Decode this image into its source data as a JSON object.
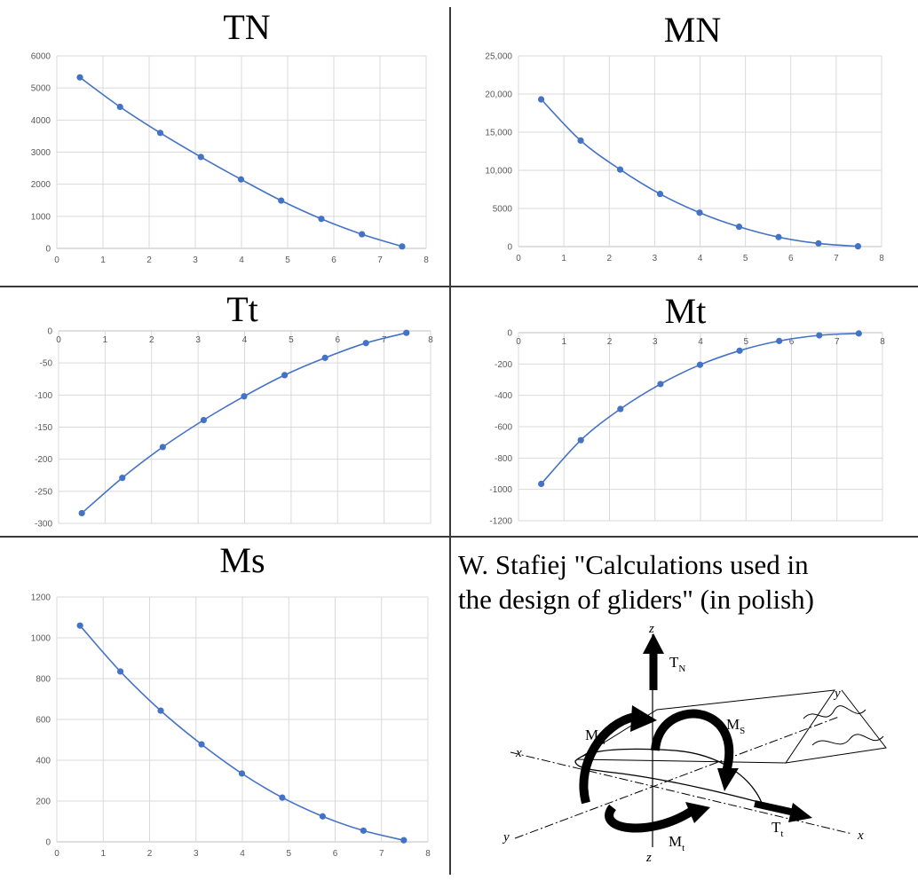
{
  "citation": {
    "line1": "W. Stafiej \"Calculations used in",
    "line2": "the design of gliders\" (in polish)"
  },
  "diagram": {
    "axis_labels": {
      "z_top": "z",
      "z_bottom": "z",
      "x_left": "x",
      "x_right": "x",
      "y_left": "y",
      "y_right": "y"
    },
    "force_labels": {
      "TN": {
        "main": "T",
        "sub": "N"
      },
      "Tt": {
        "main": "T",
        "sub": "t"
      },
      "MN": {
        "main": "M",
        "sub": "N"
      },
      "Ms": {
        "main": "M",
        "sub": "S"
      },
      "Mt": {
        "main": "M",
        "sub": "t"
      }
    }
  },
  "colors": {
    "series": "#4472c4",
    "grid": "#d9d9d9",
    "ticks": "#595959",
    "divider": "#3a3a3a"
  },
  "chart_data": [
    {
      "type": "scatter",
      "title": "TN",
      "x": [
        0.5,
        1.37,
        2.24,
        3.12,
        3.99,
        4.86,
        5.73,
        6.61,
        7.48
      ],
      "y": [
        5330,
        4410,
        3600,
        2850,
        2150,
        1490,
        920,
        440,
        60
      ],
      "xlim": [
        0,
        8
      ],
      "ylim": [
        0,
        6000
      ],
      "xticks": [
        "0",
        "1",
        "2",
        "3",
        "4",
        "5",
        "6",
        "7",
        "8"
      ],
      "yticks": [
        "0",
        "1000",
        "2000",
        "3000",
        "4000",
        "5000",
        "6000"
      ],
      "smooth": true,
      "grid": true
    },
    {
      "type": "scatter",
      "title": "MN",
      "x": [
        0.5,
        1.37,
        2.24,
        3.12,
        3.99,
        4.86,
        5.73,
        6.61,
        7.48
      ],
      "y": [
        19300,
        13900,
        10100,
        6900,
        4450,
        2600,
        1250,
        420,
        40
      ],
      "xlim": [
        0,
        8
      ],
      "ylim": [
        0,
        25000
      ],
      "xticks": [
        "0",
        "1",
        "2",
        "3",
        "4",
        "5",
        "6",
        "7",
        "8"
      ],
      "yticks": [
        "0",
        "5000",
        "10,000",
        "15,000",
        "20,000",
        "25,000"
      ],
      "smooth": true,
      "grid": true
    },
    {
      "type": "scatter",
      "title": "Tt",
      "x": [
        0.5,
        1.37,
        2.24,
        3.12,
        3.99,
        4.86,
        5.73,
        6.61,
        7.48
      ],
      "y": [
        -284,
        -229,
        -181,
        -139,
        -102,
        -69,
        -42,
        -19,
        -3
      ],
      "xlim": [
        0,
        8
      ],
      "ylim": [
        -300,
        0
      ],
      "xticks": [
        "0",
        "1",
        "2",
        "3",
        "4",
        "5",
        "6",
        "7",
        "8"
      ],
      "yticks": [
        "0",
        "-50",
        "-100",
        "-150",
        "-200",
        "-250",
        "-300"
      ],
      "smooth": true,
      "grid": true
    },
    {
      "type": "scatter",
      "title": "Mt",
      "x": [
        0.5,
        1.37,
        2.24,
        3.12,
        3.99,
        4.86,
        5.73,
        6.61,
        7.48
      ],
      "y": [
        -965,
        -686,
        -487,
        -328,
        -205,
        -115,
        -53,
        -17,
        -5
      ],
      "xlim": [
        0,
        8
      ],
      "ylim": [
        -1200,
        0
      ],
      "xticks": [
        "0",
        "1",
        "2",
        "3",
        "4",
        "5",
        "6",
        "7",
        "8"
      ],
      "yticks": [
        "0",
        "-200",
        "-400",
        "-600",
        "-800",
        "-1000",
        "-1200"
      ],
      "smooth": true,
      "grid": true
    },
    {
      "type": "scatter",
      "title": "Ms",
      "x": [
        0.5,
        1.37,
        2.24,
        3.12,
        3.99,
        4.86,
        5.73,
        6.61,
        7.48
      ],
      "y": [
        1060,
        835,
        643,
        478,
        335,
        217,
        125,
        55,
        8
      ],
      "xlim": [
        0,
        8
      ],
      "ylim": [
        0,
        1200
      ],
      "xticks": [
        "0",
        "1",
        "2",
        "3",
        "4",
        "5",
        "6",
        "7",
        "8"
      ],
      "yticks": [
        "0",
        "200",
        "400",
        "600",
        "800",
        "1000",
        "1200"
      ],
      "smooth": true,
      "grid": true
    }
  ]
}
